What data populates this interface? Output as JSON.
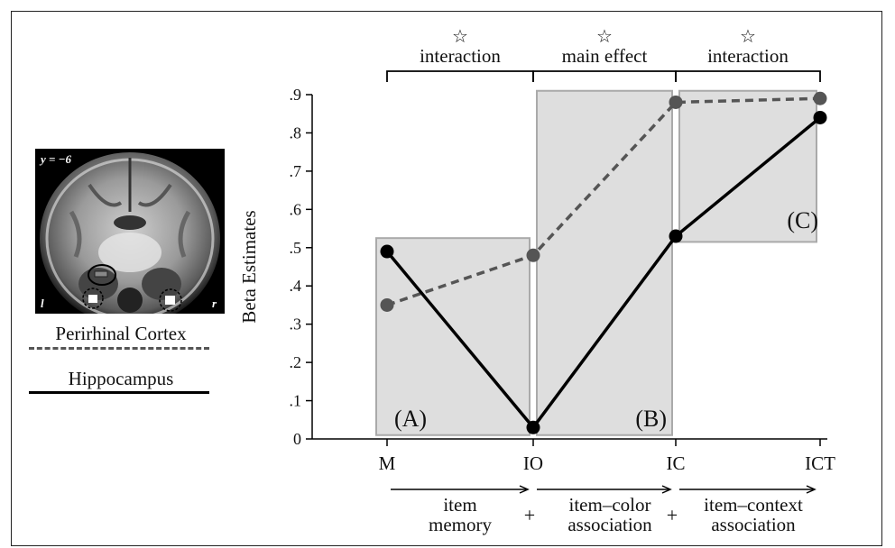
{
  "legend": {
    "perirhinal_label": "Perirhinal Cortex",
    "hippocampus_label": "Hippocampus"
  },
  "brain_image": {
    "slice_label": "y = −6",
    "left_label": "l",
    "right_label": "r"
  },
  "annotations": {
    "top_brackets": [
      {
        "label": "interaction",
        "symbol": "☆"
      },
      {
        "label": "main effect",
        "symbol": "☆"
      },
      {
        "label": "interaction",
        "symbol": "☆"
      }
    ],
    "boxes": [
      "(A)",
      "(B)",
      "(C)"
    ],
    "bottom_arrows": [
      {
        "lines": [
          "item",
          "memory"
        ]
      },
      {
        "lines": [
          "item–color",
          "association"
        ]
      },
      {
        "lines": [
          "item–context",
          "association"
        ]
      }
    ],
    "plus_sign": "+"
  },
  "colors": {
    "perirhinal": "#555555",
    "hippocampus": "#000000",
    "box_fill": "#dedede",
    "box_stroke": "#aaaaaa"
  },
  "chart_data": {
    "type": "line",
    "categories": [
      "M",
      "IO",
      "IC",
      "ICT"
    ],
    "ylabel": "Beta Estimates",
    "ylim": [
      0,
      0.9
    ],
    "yticks": [
      "0",
      ".1",
      ".2",
      ".3",
      ".4",
      ".5",
      ".6",
      ".7",
      ".8",
      ".9"
    ],
    "series": [
      {
        "name": "Perirhinal Cortex",
        "style": "dashed",
        "values": [
          0.35,
          0.48,
          0.88,
          0.89
        ]
      },
      {
        "name": "Hippocampus",
        "style": "solid",
        "values": [
          0.49,
          0.03,
          0.53,
          0.84
        ]
      }
    ],
    "shaded_boxes": [
      {
        "label": "(A)",
        "x_from": "M",
        "x_to": "IO",
        "y_range": [
          0.01,
          0.525
        ]
      },
      {
        "label": "(B)",
        "x_from": "IO",
        "x_to": "IC",
        "y_range": [
          0.01,
          0.91
        ]
      },
      {
        "label": "(C)",
        "x_from": "IC",
        "x_to": "ICT",
        "y_range": [
          0.515,
          0.91
        ]
      }
    ]
  }
}
